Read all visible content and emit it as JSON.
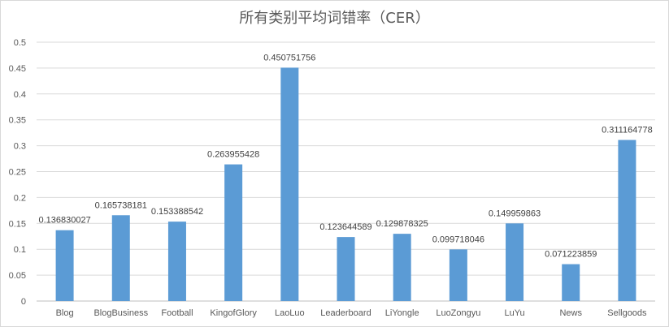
{
  "chart_data": {
    "type": "bar",
    "title": "所有类别平均词错率（CER）",
    "xlabel": "",
    "ylabel": "",
    "ylim": [
      0,
      0.5
    ],
    "yticks": [
      "0",
      "0.05",
      "0.1",
      "0.15",
      "0.2",
      "0.25",
      "0.3",
      "0.35",
      "0.4",
      "0.45",
      "0.5"
    ],
    "grid": true,
    "legend": "none",
    "bar_color": "#5b9bd5",
    "categories": [
      "Blog",
      "BlogBusiness",
      "Football",
      "KingofGlory",
      "LaoLuo",
      "Leaderboard",
      "LiYongle",
      "LuoZongyu",
      "LuYu",
      "News",
      "Sellgoods"
    ],
    "values": [
      0.136830027,
      0.165738181,
      0.153388542,
      0.263955428,
      0.450751756,
      0.123644589,
      0.129878325,
      0.099718046,
      0.149959863,
      0.071223859,
      0.311164778
    ],
    "data_labels": [
      "0.136830027",
      "0.165738181",
      "0.153388542",
      "0.263955428",
      "0.450751756",
      "0.123644589",
      "0.129878325",
      "0.099718046",
      "0.149959863",
      "0.071223859",
      "0.311164778"
    ]
  }
}
